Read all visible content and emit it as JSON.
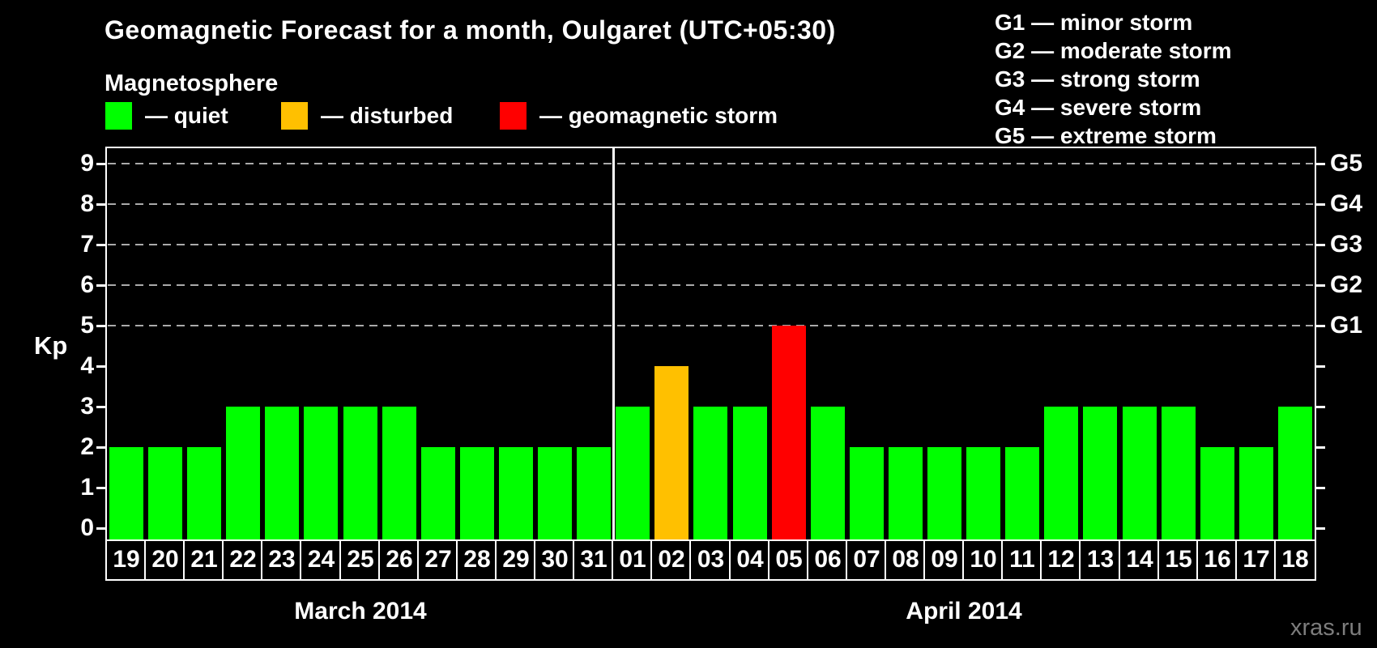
{
  "header": {
    "title": "Geomagnetic Forecast for a month, Oulgaret (UTC+05:30)",
    "subtitle": "Magnetosphere"
  },
  "legend": {
    "items": [
      {
        "name": "quiet",
        "label": "— quiet",
        "color": "#00FF00"
      },
      {
        "name": "disturbed",
        "label": "— disturbed",
        "color": "#FFC000"
      },
      {
        "name": "storm",
        "label": "— geomagnetic storm",
        "color": "#FF0000"
      }
    ]
  },
  "g_legend": {
    "lines": [
      "G1 — minor storm",
      "G2 — moderate storm",
      "G3 — strong storm",
      "G4 — severe storm",
      "G5 — extreme storm"
    ]
  },
  "watermark": "xras.ru",
  "chart_data": {
    "type": "bar",
    "title": "Geomagnetic Forecast for a month, Oulgaret (UTC+05:30)",
    "subtitle": "Magnetosphere",
    "ylabel": "Kp",
    "ylim": [
      0,
      9
    ],
    "yticks": [
      0,
      1,
      2,
      3,
      4,
      5,
      6,
      7,
      8,
      9
    ],
    "gridlines_at": [
      5,
      6,
      7,
      8,
      9
    ],
    "grid": "dashed horizontal at storm levels only",
    "legend_position": "top",
    "right_axis": [
      {
        "label": "G5",
        "kp": 9
      },
      {
        "label": "G4",
        "kp": 8
      },
      {
        "label": "G3",
        "kp": 7
      },
      {
        "label": "G2",
        "kp": 6
      },
      {
        "label": "G1",
        "kp": 5
      }
    ],
    "colors": {
      "quiet": "#00FF00",
      "disturbed": "#FFC000",
      "storm": "#FF0000"
    },
    "months": [
      {
        "label": "March 2014",
        "days": [
          {
            "day": "19",
            "kp": 2,
            "status": "quiet"
          },
          {
            "day": "20",
            "kp": 2,
            "status": "quiet"
          },
          {
            "day": "21",
            "kp": 2,
            "status": "quiet"
          },
          {
            "day": "22",
            "kp": 3,
            "status": "quiet"
          },
          {
            "day": "23",
            "kp": 3,
            "status": "quiet"
          },
          {
            "day": "24",
            "kp": 3,
            "status": "quiet"
          },
          {
            "day": "25",
            "kp": 3,
            "status": "quiet"
          },
          {
            "day": "26",
            "kp": 3,
            "status": "quiet"
          },
          {
            "day": "27",
            "kp": 2,
            "status": "quiet"
          },
          {
            "day": "28",
            "kp": 2,
            "status": "quiet"
          },
          {
            "day": "29",
            "kp": 2,
            "status": "quiet"
          },
          {
            "day": "30",
            "kp": 2,
            "status": "quiet"
          },
          {
            "day": "31",
            "kp": 2,
            "status": "quiet"
          }
        ]
      },
      {
        "label": "April 2014",
        "days": [
          {
            "day": "01",
            "kp": 3,
            "status": "quiet"
          },
          {
            "day": "02",
            "kp": 4,
            "status": "disturbed"
          },
          {
            "day": "03",
            "kp": 3,
            "status": "quiet"
          },
          {
            "day": "04",
            "kp": 3,
            "status": "quiet"
          },
          {
            "day": "05",
            "kp": 5,
            "status": "storm"
          },
          {
            "day": "06",
            "kp": 3,
            "status": "quiet"
          },
          {
            "day": "07",
            "kp": 2,
            "status": "quiet"
          },
          {
            "day": "08",
            "kp": 2,
            "status": "quiet"
          },
          {
            "day": "09",
            "kp": 2,
            "status": "quiet"
          },
          {
            "day": "10",
            "kp": 2,
            "status": "quiet"
          },
          {
            "day": "11",
            "kp": 2,
            "status": "quiet"
          },
          {
            "day": "12",
            "kp": 3,
            "status": "quiet"
          },
          {
            "day": "13",
            "kp": 3,
            "status": "quiet"
          },
          {
            "day": "14",
            "kp": 3,
            "status": "quiet"
          },
          {
            "day": "15",
            "kp": 3,
            "status": "quiet"
          },
          {
            "day": "16",
            "kp": 2,
            "status": "quiet"
          },
          {
            "day": "17",
            "kp": 2,
            "status": "quiet"
          },
          {
            "day": "18",
            "kp": 3,
            "status": "quiet"
          }
        ]
      }
    ]
  }
}
